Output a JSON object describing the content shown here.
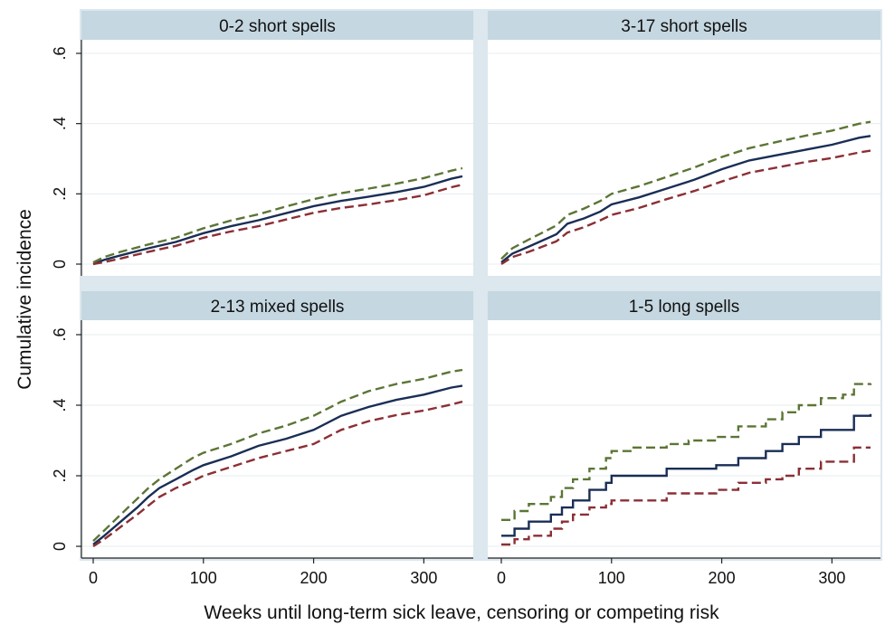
{
  "chart_data": {
    "type": "line",
    "layout": "2x2 small multiples",
    "xlabel": "Weeks until long-term sick leave, censoring or competing risk",
    "ylabel": "Cumulative incidence",
    "xlim": [
      0,
      335
    ],
    "ylim": [
      0,
      0.62
    ],
    "xticks": [
      0,
      100,
      200,
      300
    ],
    "xtick_labels": [
      "0",
      "100",
      "200",
      "300"
    ],
    "yticks": [
      0,
      0.2,
      0.4,
      0.6
    ],
    "ytick_labels": [
      "0",
      ".2",
      ".4",
      ".6"
    ],
    "grid": true,
    "colors": {
      "estimate": "#1a2e55",
      "upper": "#5c7535",
      "lower": "#8b2f35",
      "strip": "#c5d7e1",
      "gap": "#dce7ee"
    },
    "panels": [
      {
        "title": "0-2 short spells",
        "series": [
          {
            "role": "estimate",
            "style": "solid",
            "step": false,
            "x": [
              0,
              10,
              25,
              50,
              75,
              100,
              125,
              150,
              175,
              200,
              225,
              250,
              275,
              300,
              325,
              335
            ],
            "y": [
              0,
              0.012,
              0.025,
              0.045,
              0.063,
              0.088,
              0.108,
              0.125,
              0.145,
              0.165,
              0.18,
              0.192,
              0.205,
              0.22,
              0.243,
              0.25
            ]
          },
          {
            "role": "upper",
            "style": "dashed",
            "step": false,
            "x": [
              0,
              10,
              25,
              50,
              75,
              100,
              125,
              150,
              175,
              200,
              225,
              250,
              275,
              300,
              325,
              335
            ],
            "y": [
              0.005,
              0.02,
              0.035,
              0.056,
              0.075,
              0.102,
              0.124,
              0.142,
              0.164,
              0.185,
              0.202,
              0.215,
              0.229,
              0.245,
              0.266,
              0.273
            ]
          },
          {
            "role": "lower",
            "style": "dashed",
            "step": false,
            "x": [
              0,
              10,
              25,
              50,
              75,
              100,
              125,
              150,
              175,
              200,
              225,
              250,
              275,
              300,
              325,
              335
            ],
            "y": [
              0,
              0.006,
              0.016,
              0.035,
              0.052,
              0.075,
              0.093,
              0.108,
              0.127,
              0.146,
              0.16,
              0.17,
              0.182,
              0.196,
              0.219,
              0.226
            ]
          }
        ]
      },
      {
        "title": "3-17 short spells",
        "series": [
          {
            "role": "estimate",
            "style": "solid",
            "step": false,
            "x": [
              0,
              10,
              25,
              50,
              60,
              75,
              90,
              100,
              125,
              150,
              175,
              200,
              225,
              250,
              275,
              300,
              325,
              335
            ],
            "y": [
              0.005,
              0.03,
              0.05,
              0.085,
              0.115,
              0.13,
              0.15,
              0.17,
              0.19,
              0.215,
              0.24,
              0.27,
              0.295,
              0.31,
              0.325,
              0.34,
              0.36,
              0.365
            ]
          },
          {
            "role": "upper",
            "style": "dashed",
            "step": false,
            "x": [
              0,
              10,
              25,
              50,
              60,
              75,
              90,
              100,
              125,
              150,
              175,
              200,
              225,
              250,
              275,
              300,
              325,
              335
            ],
            "y": [
              0.015,
              0.045,
              0.07,
              0.11,
              0.14,
              0.158,
              0.18,
              0.2,
              0.222,
              0.248,
              0.275,
              0.305,
              0.33,
              0.348,
              0.365,
              0.38,
              0.4,
              0.405
            ]
          },
          {
            "role": "lower",
            "style": "dashed",
            "step": false,
            "x": [
              0,
              10,
              25,
              50,
              60,
              75,
              90,
              100,
              125,
              150,
              175,
              200,
              225,
              250,
              275,
              300,
              325,
              335
            ],
            "y": [
              0,
              0.02,
              0.035,
              0.065,
              0.09,
              0.105,
              0.125,
              0.14,
              0.16,
              0.185,
              0.208,
              0.235,
              0.26,
              0.275,
              0.29,
              0.302,
              0.318,
              0.323
            ]
          }
        ]
      },
      {
        "title": "2-13 mixed spells",
        "series": [
          {
            "role": "estimate",
            "style": "solid",
            "step": false,
            "x": [
              0,
              10,
              25,
              40,
              50,
              60,
              75,
              90,
              100,
              125,
              150,
              175,
              200,
              225,
              250,
              275,
              300,
              325,
              335
            ],
            "y": [
              0.005,
              0.03,
              0.07,
              0.11,
              0.14,
              0.165,
              0.19,
              0.215,
              0.23,
              0.255,
              0.285,
              0.305,
              0.33,
              0.37,
              0.395,
              0.415,
              0.43,
              0.45,
              0.455
            ]
          },
          {
            "role": "upper",
            "style": "dashed",
            "step": false,
            "x": [
              0,
              10,
              25,
              40,
              50,
              60,
              75,
              90,
              100,
              125,
              150,
              175,
              200,
              225,
              250,
              275,
              300,
              325,
              335
            ],
            "y": [
              0.015,
              0.045,
              0.09,
              0.135,
              0.165,
              0.19,
              0.22,
              0.25,
              0.265,
              0.29,
              0.32,
              0.342,
              0.37,
              0.41,
              0.44,
              0.46,
              0.475,
              0.495,
              0.5
            ]
          },
          {
            "role": "lower",
            "style": "dashed",
            "step": false,
            "x": [
              0,
              10,
              25,
              40,
              50,
              60,
              75,
              90,
              100,
              125,
              150,
              175,
              200,
              225,
              250,
              275,
              300,
              325,
              335
            ],
            "y": [
              0,
              0.02,
              0.055,
              0.09,
              0.115,
              0.14,
              0.165,
              0.185,
              0.2,
              0.225,
              0.25,
              0.27,
              0.29,
              0.33,
              0.355,
              0.372,
              0.385,
              0.402,
              0.41
            ]
          }
        ]
      },
      {
        "title": "1-5 long spells",
        "series": [
          {
            "role": "estimate",
            "style": "solid",
            "step": true,
            "x": [
              0,
              12,
              25,
              45,
              55,
              65,
              80,
              95,
              100,
              120,
              150,
              170,
              195,
              215,
              240,
              255,
              270,
              290,
              310,
              320,
              335
            ],
            "y": [
              0.03,
              0.05,
              0.07,
              0.09,
              0.11,
              0.13,
              0.16,
              0.18,
              0.2,
              0.2,
              0.22,
              0.22,
              0.23,
              0.25,
              0.27,
              0.29,
              0.31,
              0.33,
              0.33,
              0.37,
              0.375
            ]
          },
          {
            "role": "upper",
            "style": "dashed",
            "step": true,
            "x": [
              0,
              12,
              25,
              45,
              55,
              65,
              80,
              95,
              100,
              120,
              150,
              170,
              195,
              215,
              240,
              255,
              270,
              290,
              310,
              320,
              335
            ],
            "y": [
              0.075,
              0.1,
              0.12,
              0.14,
              0.165,
              0.19,
              0.22,
              0.25,
              0.27,
              0.28,
              0.29,
              0.3,
              0.31,
              0.34,
              0.36,
              0.38,
              0.4,
              0.42,
              0.43,
              0.46,
              0.462
            ]
          },
          {
            "role": "lower",
            "style": "dashed",
            "step": true,
            "x": [
              0,
              12,
              25,
              45,
              55,
              65,
              80,
              95,
              100,
              120,
              150,
              170,
              195,
              215,
              240,
              255,
              270,
              290,
              310,
              320,
              335
            ],
            "y": [
              0.005,
              0.02,
              0.03,
              0.05,
              0.07,
              0.09,
              0.11,
              0.12,
              0.13,
              0.13,
              0.15,
              0.15,
              0.16,
              0.18,
              0.19,
              0.2,
              0.22,
              0.24,
              0.24,
              0.28,
              0.28
            ]
          }
        ]
      }
    ]
  }
}
